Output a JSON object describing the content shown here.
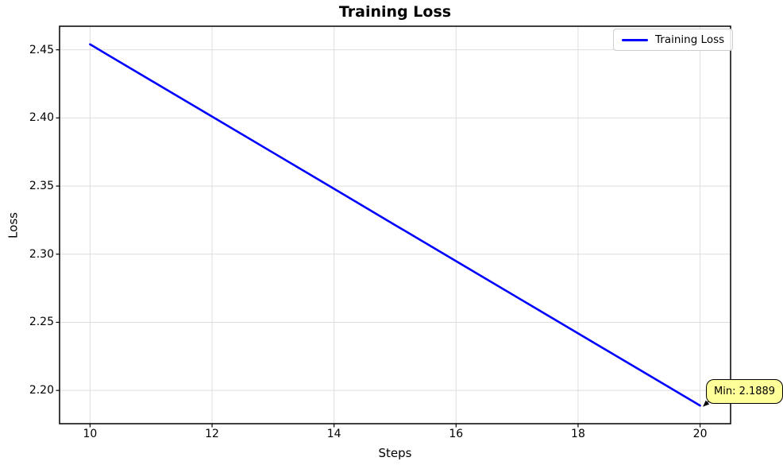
{
  "chart_data": {
    "type": "line",
    "title": "Training Loss",
    "xlabel": "Steps",
    "ylabel": "Loss",
    "grid": true,
    "legend_position": "upper right",
    "xlim": [
      9.5,
      20.5
    ],
    "ylim": [
      2.1756,
      2.4673
    ],
    "xticks": [
      10,
      12,
      14,
      16,
      18,
      20
    ],
    "xtick_labels": [
      "10",
      "12",
      "14",
      "16",
      "18",
      "20"
    ],
    "yticks": [
      2.2,
      2.25,
      2.3,
      2.35,
      2.4,
      2.45
    ],
    "ytick_labels": [
      "2.20",
      "2.25",
      "2.30",
      "2.35",
      "2.40",
      "2.45"
    ],
    "series": [
      {
        "name": "Training Loss",
        "color": "#0000ff",
        "x": [
          10,
          11,
          12,
          13,
          14,
          15,
          16,
          17,
          18,
          19,
          20
        ],
        "y": [
          2.454,
          2.4275,
          2.401,
          2.3745,
          2.348,
          2.3214,
          2.2949,
          2.2684,
          2.2419,
          2.2154,
          2.1889
        ]
      }
    ],
    "annotation": {
      "text": "Min: 2.1889",
      "xy": [
        20,
        2.1889
      ],
      "bg_color": "#ffff99",
      "border_color": "#000000"
    },
    "grid_color": "#dedede",
    "spine_color": "#000000"
  }
}
